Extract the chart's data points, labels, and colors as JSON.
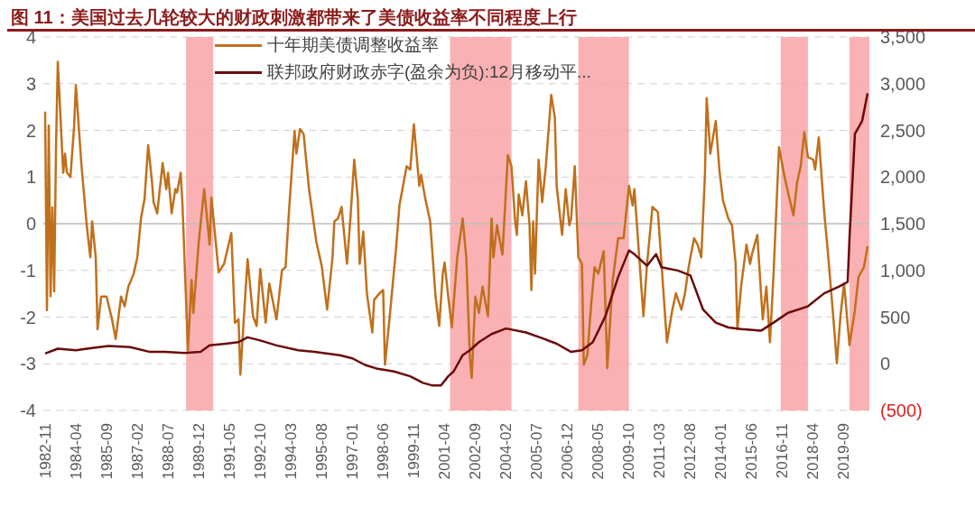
{
  "chart_data": {
    "type": "line",
    "title": "图 11：美国过去几轮较大的财政刺激都带来了美债收益率不同程度上行",
    "xlim": [
      "1982-10",
      "2020-11"
    ],
    "xticks": [
      "1982-11",
      "1984-04",
      "1985-09",
      "1987-02",
      "1988-07",
      "1989-12",
      "1991-05",
      "1992-10",
      "1994-03",
      "1995-08",
      "1997-01",
      "1998-06",
      "1999-11",
      "2001-04",
      "2002-09",
      "2004-02",
      "2005-07",
      "2006-12",
      "2008-05",
      "2009-10",
      "2011-03",
      "2012-08",
      "2014-01",
      "2015-06",
      "2016-11",
      "2018-04",
      "2019-09"
    ],
    "ylim": [
      -4,
      4
    ],
    "yticks": [
      -4,
      -3,
      -2,
      -1,
      0,
      1,
      2,
      3,
      4
    ],
    "y2lim": [
      -500,
      3500
    ],
    "y2ticks": [
      {
        "value": -500,
        "label": "(500)"
      },
      0,
      500,
      {
        "value": 1000,
        "label": "1,000"
      },
      {
        "value": 1500,
        "label": "1,500"
      },
      {
        "value": 2000,
        "label": "2,000"
      },
      {
        "value": 2500,
        "label": "2,500"
      },
      {
        "value": 3000,
        "label": "3,000"
      },
      {
        "value": 3500,
        "label": "3,500"
      }
    ],
    "grid": "y",
    "legend": "top",
    "ref_lines": [
      {
        "axis": "y",
        "value": 0,
        "color": "#bfbfbf"
      }
    ],
    "bands": [
      {
        "axis": "x",
        "from": "1989-05",
        "to": "1990-08",
        "color": "#f9a3a6"
      },
      {
        "axis": "x",
        "from": "2001-07",
        "to": "2004-05",
        "color": "#f9a3a6"
      },
      {
        "axis": "x",
        "from": "2007-06",
        "to": "2009-10",
        "color": "#f9a3a6"
      },
      {
        "axis": "x",
        "from": "2016-10",
        "to": "2018-01",
        "color": "#f9a3a6"
      },
      {
        "axis": "x",
        "from": "2019-12",
        "to": "2020-11",
        "color": "#f9a3a6"
      }
    ],
    "series": [
      {
        "name": "十年期美债调整收益率",
        "color": "#c0701c",
        "x": [
          "1982-11",
          "1982-12",
          "1983-01",
          "1983-02",
          "1983-03",
          "1983-04",
          "1983-05",
          "1983-06",
          "1983-09",
          "1983-10",
          "1983-11",
          "1984-01",
          "1984-03",
          "1984-04",
          "1984-07",
          "1984-10",
          "1984-12",
          "1985-01",
          "1985-03",
          "1985-04",
          "1985-06",
          "1985-09",
          "1985-12",
          "1986-02",
          "1986-05",
          "1986-07",
          "1986-09",
          "1986-12",
          "1987-02",
          "1987-04",
          "1987-06",
          "1987-08",
          "1987-10",
          "1987-11",
          "1988-01",
          "1988-04",
          "1988-06",
          "1988-07",
          "1988-09",
          "1988-11",
          "1988-12",
          "1989-02",
          "1989-03",
          "1989-06",
          "1989-08",
          "1989-09",
          "1989-12",
          "1990-03",
          "1990-06",
          "1990-07",
          "1990-11",
          "1991-02",
          "1991-06",
          "1991-08",
          "1991-10",
          "1991-11",
          "1992-01",
          "1992-03",
          "1992-06",
          "1992-08",
          "1992-10",
          "1993-01",
          "1993-03",
          "1993-07",
          "1993-10",
          "1993-12",
          "1994-02",
          "1994-05",
          "1994-06",
          "1994-08",
          "1994-10",
          "1995-01",
          "1995-05",
          "1995-08",
          "1995-11",
          "1996-02",
          "1996-03",
          "1996-05",
          "1996-07",
          "1996-10",
          "1996-12",
          "1997-02",
          "1997-04",
          "1997-05",
          "1997-07",
          "1997-09",
          "1997-12",
          "1998-01",
          "1998-04",
          "1998-06",
          "1998-07",
          "1998-10",
          "1999-01",
          "1999-03",
          "1999-07",
          "1999-09",
          "1999-11",
          "2000-02",
          "2000-03",
          "2000-05",
          "2000-08",
          "2000-11",
          "2001-01",
          "2001-03",
          "2001-04",
          "2001-06",
          "2001-08",
          "2001-11",
          "2002-02",
          "2002-04",
          "2002-06",
          "2002-07",
          "2002-09",
          "2002-11",
          "2003-01",
          "2003-04",
          "2003-06",
          "2003-07",
          "2003-09",
          "2003-12",
          "2004-03",
          "2004-05",
          "2004-07",
          "2004-08",
          "2004-09",
          "2004-11",
          "2005-01",
          "2005-03",
          "2005-04",
          "2005-05",
          "2005-06",
          "2005-08",
          "2005-10",
          "2005-12",
          "2006-03",
          "2006-05",
          "2006-06",
          "2006-09",
          "2006-11",
          "2007-01",
          "2007-02",
          "2007-04",
          "2007-06",
          "2007-08",
          "2007-09",
          "2007-11",
          "2008-01",
          "2008-03",
          "2008-05",
          "2008-08",
          "2008-10",
          "2009-01",
          "2009-04",
          "2009-07",
          "2009-10",
          "2009-12",
          "2010-01",
          "2010-06",
          "2010-08",
          "2010-11",
          "2011-02",
          "2011-04",
          "2011-07",
          "2011-10",
          "2011-12",
          "2012-03",
          "2012-05",
          "2012-07",
          "2012-10",
          "2012-12",
          "2013-02",
          "2013-04",
          "2013-05",
          "2013-07",
          "2013-10",
          "2013-12",
          "2014-02",
          "2014-05",
          "2014-07",
          "2014-09",
          "2014-10",
          "2014-12",
          "2015-03",
          "2015-05",
          "2015-06",
          "2015-09",
          "2015-12",
          "2016-02",
          "2016-04",
          "2016-06",
          "2016-09",
          "2016-12",
          "2017-02",
          "2017-05",
          "2017-07",
          "2017-09",
          "2017-11",
          "2018-01",
          "2018-04",
          "2018-05",
          "2018-07",
          "2018-10",
          "2018-12",
          "2019-03",
          "2019-05",
          "2019-07",
          "2019-09",
          "2019-12",
          "2020-03",
          "2020-05",
          "2020-08",
          "2020-10"
        ],
        "values": [
          2.4,
          -1.85,
          2.1,
          -1.55,
          0.35,
          -1.45,
          1.6,
          3.47,
          1.09,
          1.5,
          1.1,
          1.0,
          2.07,
          2.97,
          1.3,
          -0.03,
          -0.72,
          0.05,
          -0.72,
          -2.26,
          -1.56,
          -1.56,
          -2.05,
          -2.47,
          -1.56,
          -1.77,
          -1.35,
          -1.07,
          -0.72,
          0.11,
          0.53,
          1.68,
          0.95,
          0.46,
          0.22,
          1.3,
          0.74,
          1.09,
          0.22,
          0.74,
          0.67,
          1.09,
          0.39,
          -2.71,
          -1.21,
          -1.91,
          -0.38,
          0.74,
          -0.45,
          0.56,
          -1.04,
          -0.86,
          -0.2,
          -2.12,
          -2.05,
          -3.23,
          -1.98,
          -0.76,
          -1.98,
          -2.19,
          -0.97,
          -2.12,
          -1.28,
          -2.05,
          -1.0,
          -0.93,
          0.32,
          1.99,
          1.5,
          2.03,
          1.92,
          0.74,
          -0.38,
          -0.9,
          -1.84,
          -0.72,
          0.05,
          0.11,
          0.36,
          -0.86,
          0.18,
          1.37,
          0.53,
          -0.86,
          -0.17,
          -1.49,
          -2.33,
          -1.63,
          -1.49,
          -1.42,
          -3.02,
          -1.84,
          -0.59,
          0.39,
          1.23,
          1.16,
          2.13,
          0.81,
          1.05,
          0.6,
          0.05,
          -1.56,
          -2.19,
          -1.07,
          -0.83,
          -1.56,
          -2.22,
          -0.72,
          0.11,
          -0.72,
          -2.88,
          -3.3,
          -1.56,
          -1.91,
          -1.35,
          -1.98,
          0.11,
          -0.72,
          -0.03,
          -0.66,
          1.47,
          1.23,
          0.05,
          -0.24,
          0.63,
          0.18,
          0.91,
          -0.03,
          -1.42,
          0.05,
          -1.07,
          1.37,
          0.46,
          1.23,
          2.76,
          2.27,
          0.81,
          -0.24,
          0.74,
          -0.03,
          0.11,
          1.23,
          -0.72,
          -0.86,
          -3.02,
          -2.81,
          -1.77,
          -0.93,
          -1.07,
          -0.59,
          -3.09,
          -1.21,
          -0.31,
          -0.31,
          0.81,
          0.39,
          0.74,
          -1.98,
          -0.86,
          0.36,
          0.25,
          -0.86,
          -2.54,
          -1.84,
          -1.49,
          -1.84,
          -1.49,
          -0.93,
          -0.31,
          -0.45,
          -0.72,
          1.02,
          2.69,
          1.5,
          2.2,
          1.16,
          0.5,
          0.11,
          -0.03,
          -0.86,
          -2.26,
          -1.35,
          -0.45,
          -0.86,
          -0.66,
          -0.24,
          -2.05,
          -1.35,
          -2.54,
          -1.07,
          1.64,
          1.02,
          0.67,
          0.18,
          0.88,
          1.23,
          1.96,
          1.43,
          1.37,
          1.16,
          1.85,
          0.25,
          -0.59,
          -1.98,
          -2.99,
          -1.98,
          -1.28,
          -2.6,
          -1.84,
          -1.14,
          -0.93,
          -0.48
        ]
      },
      {
        "name": "联邦政府财政赤字(盈余为负):12月移动平...",
        "color": "#6b0a0a",
        "axis": "y2",
        "x": [
          "1982-11",
          "1983-06",
          "1984-04",
          "1985-01",
          "1985-10",
          "1986-10",
          "1987-09",
          "1988-05",
          "1989-04",
          "1990-01",
          "1990-06",
          "1991-03",
          "1991-10",
          "1992-03",
          "1992-10",
          "1993-07",
          "1994-07",
          "1995-04",
          "1996-06",
          "1997-01",
          "1997-08",
          "1998-03",
          "1998-12",
          "1999-09",
          "2000-04",
          "2000-09",
          "2001-02",
          "2001-06",
          "2001-09",
          "2002-02",
          "2002-06",
          "2002-11",
          "2003-06",
          "2004-02",
          "2005-01",
          "2005-10",
          "2006-06",
          "2007-02",
          "2007-08",
          "2008-02",
          "2008-09",
          "2009-04",
          "2009-10",
          "2010-01",
          "2010-08",
          "2011-01",
          "2011-04",
          "2012-01",
          "2012-08",
          "2013-03",
          "2013-10",
          "2014-05",
          "2014-12",
          "2015-11",
          "2016-06",
          "2017-02",
          "2018-01",
          "2018-10",
          "2019-06",
          "2019-11",
          "2019-12",
          "2020-03",
          "2020-07",
          "2020-10"
        ],
        "values": [
          110,
          162,
          145,
          169,
          190,
          179,
          127,
          127,
          117,
          127,
          197,
          215,
          232,
          284,
          250,
          197,
          145,
          127,
          92,
          58,
          -12,
          -54,
          -82,
          -134,
          -204,
          -231,
          -231,
          -134,
          -82,
          92,
          145,
          232,
          319,
          378,
          336,
          274,
          215,
          127,
          145,
          232,
          511,
          929,
          1214,
          1173,
          1051,
          1173,
          1033,
          999,
          946,
          580,
          441,
          389,
          371,
          354,
          441,
          546,
          615,
          755,
          824,
          877,
          1347,
          2462,
          2601,
          2897
        ]
      }
    ]
  }
}
